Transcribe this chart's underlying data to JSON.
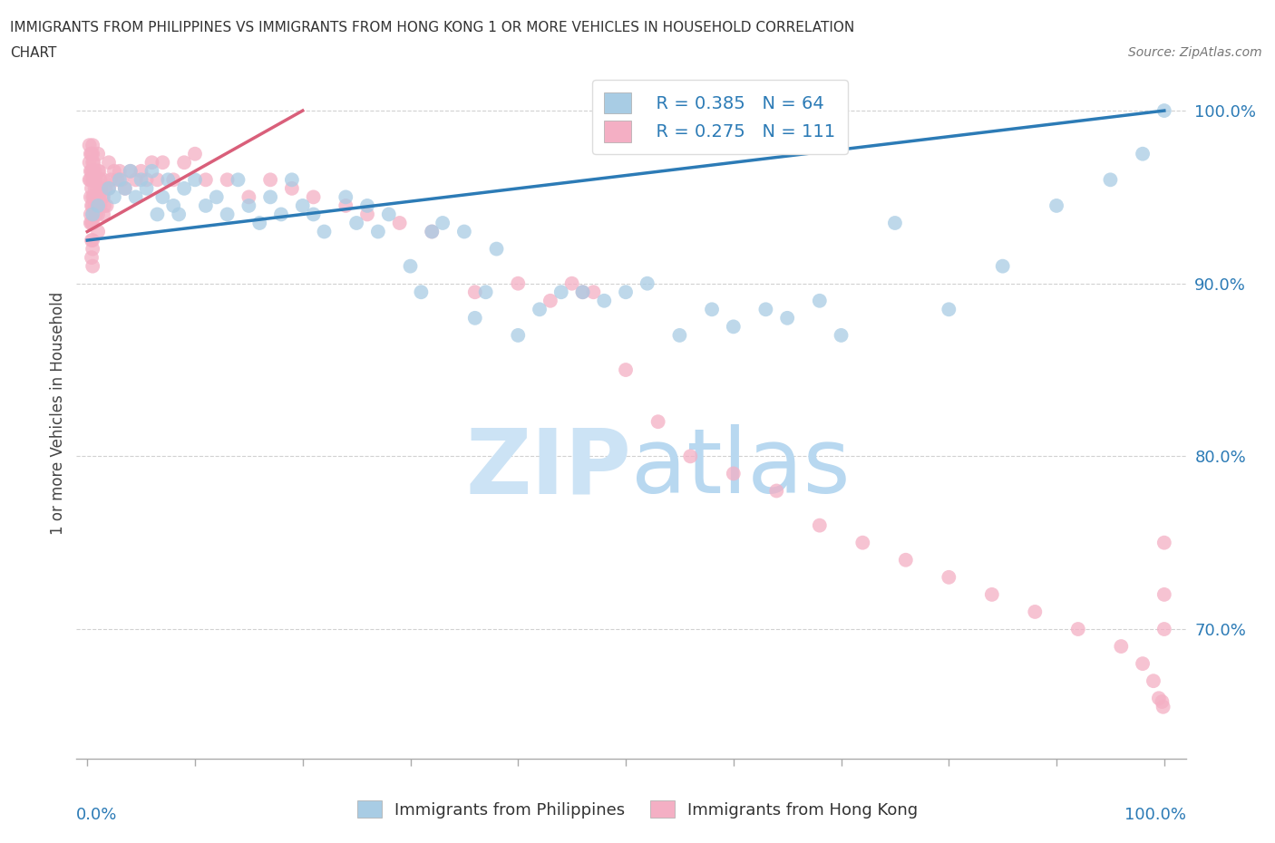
{
  "title_line1": "IMMIGRANTS FROM PHILIPPINES VS IMMIGRANTS FROM HONG KONG 1 OR MORE VEHICLES IN HOUSEHOLD CORRELATION",
  "title_line2": "CHART",
  "source_text": "Source: ZipAtlas.com",
  "ylabel": "1 or more Vehicles in Household",
  "legend_r1": "R = 0.385",
  "legend_n1": "N = 64",
  "legend_r2": "R = 0.275",
  "legend_n2": "N = 111",
  "color_blue": "#a8cce4",
  "color_pink": "#f4afc4",
  "color_blue_line": "#2c7bb6",
  "color_pink_line": "#d95f7a",
  "color_label": "#2c7bb6",
  "watermark_zip_color": "#cce3f5",
  "watermark_atlas_color": "#b8d8f0",
  "background_color": "#ffffff",
  "xlim": [
    -0.01,
    1.02
  ],
  "ylim": [
    0.625,
    1.025
  ],
  "ytick_values": [
    0.7,
    0.8,
    0.9,
    1.0
  ],
  "ytick_labels": [
    "70.0%",
    "80.0%",
    "90.0%",
    "100.0%"
  ],
  "blue_x": [
    0.005,
    0.01,
    0.02,
    0.025,
    0.03,
    0.035,
    0.04,
    0.045,
    0.05,
    0.055,
    0.06,
    0.065,
    0.07,
    0.075,
    0.08,
    0.085,
    0.09,
    0.1,
    0.11,
    0.12,
    0.13,
    0.14,
    0.15,
    0.16,
    0.17,
    0.18,
    0.19,
    0.2,
    0.21,
    0.22,
    0.24,
    0.25,
    0.26,
    0.27,
    0.28,
    0.3,
    0.31,
    0.32,
    0.33,
    0.35,
    0.36,
    0.37,
    0.38,
    0.4,
    0.42,
    0.44,
    0.46,
    0.48,
    0.5,
    0.52,
    0.55,
    0.58,
    0.6,
    0.63,
    0.65,
    0.68,
    0.7,
    0.75,
    0.8,
    0.85,
    0.9,
    0.95,
    0.98,
    1.0
  ],
  "blue_y": [
    0.94,
    0.945,
    0.955,
    0.95,
    0.96,
    0.955,
    0.965,
    0.95,
    0.96,
    0.955,
    0.965,
    0.94,
    0.95,
    0.96,
    0.945,
    0.94,
    0.955,
    0.96,
    0.945,
    0.95,
    0.94,
    0.96,
    0.945,
    0.935,
    0.95,
    0.94,
    0.96,
    0.945,
    0.94,
    0.93,
    0.95,
    0.935,
    0.945,
    0.93,
    0.94,
    0.91,
    0.895,
    0.93,
    0.935,
    0.93,
    0.88,
    0.895,
    0.92,
    0.87,
    0.885,
    0.895,
    0.895,
    0.89,
    0.895,
    0.9,
    0.87,
    0.885,
    0.875,
    0.885,
    0.88,
    0.89,
    0.87,
    0.935,
    0.885,
    0.91,
    0.945,
    0.96,
    0.975,
    1.0
  ],
  "pink_x": [
    0.002,
    0.002,
    0.002,
    0.003,
    0.003,
    0.003,
    0.003,
    0.003,
    0.003,
    0.004,
    0.004,
    0.004,
    0.004,
    0.004,
    0.004,
    0.004,
    0.005,
    0.005,
    0.005,
    0.005,
    0.005,
    0.005,
    0.005,
    0.005,
    0.005,
    0.005,
    0.005,
    0.005,
    0.006,
    0.006,
    0.006,
    0.007,
    0.007,
    0.007,
    0.008,
    0.008,
    0.008,
    0.009,
    0.009,
    0.01,
    0.01,
    0.01,
    0.01,
    0.01,
    0.011,
    0.011,
    0.012,
    0.012,
    0.013,
    0.014,
    0.015,
    0.015,
    0.015,
    0.016,
    0.017,
    0.018,
    0.02,
    0.02,
    0.022,
    0.025,
    0.028,
    0.03,
    0.032,
    0.035,
    0.04,
    0.045,
    0.05,
    0.055,
    0.06,
    0.065,
    0.07,
    0.08,
    0.09,
    0.1,
    0.11,
    0.13,
    0.15,
    0.17,
    0.19,
    0.21,
    0.24,
    0.26,
    0.29,
    0.32,
    0.36,
    0.4,
    0.43,
    0.45,
    0.46,
    0.47,
    0.5,
    0.53,
    0.56,
    0.6,
    0.64,
    0.68,
    0.72,
    0.76,
    0.8,
    0.84,
    0.88,
    0.92,
    0.96,
    0.98,
    0.99,
    0.995,
    0.998,
    0.999,
    1.0,
    1.0,
    1.0
  ],
  "pink_y": [
    0.98,
    0.97,
    0.96,
    0.975,
    0.965,
    0.96,
    0.95,
    0.94,
    0.935,
    0.975,
    0.965,
    0.955,
    0.945,
    0.935,
    0.925,
    0.915,
    0.98,
    0.975,
    0.97,
    0.965,
    0.96,
    0.95,
    0.945,
    0.94,
    0.935,
    0.925,
    0.92,
    0.91,
    0.97,
    0.96,
    0.95,
    0.965,
    0.955,
    0.945,
    0.96,
    0.95,
    0.94,
    0.955,
    0.945,
    0.975,
    0.965,
    0.95,
    0.94,
    0.93,
    0.965,
    0.95,
    0.96,
    0.945,
    0.955,
    0.95,
    0.96,
    0.95,
    0.94,
    0.945,
    0.955,
    0.945,
    0.97,
    0.955,
    0.96,
    0.965,
    0.96,
    0.965,
    0.96,
    0.955,
    0.965,
    0.96,
    0.965,
    0.96,
    0.97,
    0.96,
    0.97,
    0.96,
    0.97,
    0.975,
    0.96,
    0.96,
    0.95,
    0.96,
    0.955,
    0.95,
    0.945,
    0.94,
    0.935,
    0.93,
    0.895,
    0.9,
    0.89,
    0.9,
    0.895,
    0.895,
    0.85,
    0.82,
    0.8,
    0.79,
    0.78,
    0.76,
    0.75,
    0.74,
    0.73,
    0.72,
    0.71,
    0.7,
    0.69,
    0.68,
    0.67,
    0.66,
    0.658,
    0.655,
    0.75,
    0.72,
    0.7
  ],
  "blue_line_x": [
    0.0,
    1.0
  ],
  "blue_line_y": [
    0.925,
    1.0
  ],
  "pink_line_x": [
    0.0,
    0.2
  ],
  "pink_line_y": [
    0.93,
    1.0
  ]
}
